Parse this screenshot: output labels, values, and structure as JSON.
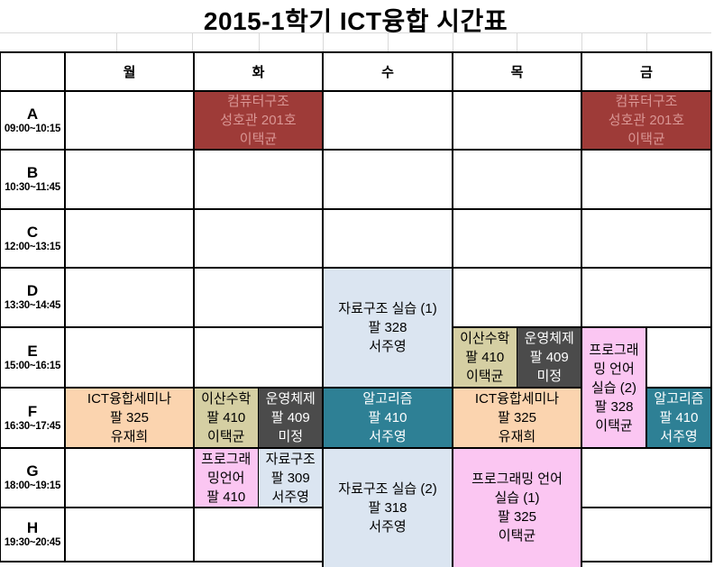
{
  "title": "2015-1학기 ICT융합 시간표",
  "days": [
    "월",
    "화",
    "수",
    "목",
    "금"
  ],
  "periods": [
    {
      "letter": "A",
      "time": "09:00~10:15"
    },
    {
      "letter": "B",
      "time": "10:30~11:45"
    },
    {
      "letter": "C",
      "time": "12:00~13:15"
    },
    {
      "letter": "D",
      "time": "13:30~14:45"
    },
    {
      "letter": "E",
      "time": "15:00~16:15"
    },
    {
      "letter": "F",
      "time": "16:30~17:45"
    },
    {
      "letter": "G",
      "time": "18:00~19:15"
    },
    {
      "letter": "H",
      "time": "19:30~20:45"
    }
  ],
  "colors": {
    "dark_red": "#9E3B38",
    "dark_red_text": "#D99694",
    "light_blue": "#DBE5F1",
    "tan": "#D5CFA3",
    "dark_gray": "#4B4B4B",
    "pink": "#FBC6F2",
    "teal": "#2E8095",
    "peach": "#FBD4AF",
    "white": "#FFFFFF",
    "black": "#000000",
    "border": "#000000",
    "faint_gridline": "#D9D9D9"
  },
  "classes": [
    {
      "id": "computer-architecture-tue-a",
      "day": 1,
      "row_start": 0,
      "row_end": 0,
      "half": "full",
      "bg": "dark_red",
      "fg": "dark_red_text",
      "lines": [
        "컴퓨터구조",
        "성호관 201호",
        "이택균"
      ]
    },
    {
      "id": "computer-architecture-fri-a",
      "day": 4,
      "row_start": 0,
      "row_end": 0,
      "half": "full",
      "bg": "dark_red",
      "fg": "dark_red_text",
      "lines": [
        "컴퓨터구조",
        "성호관 201호",
        "이택균"
      ]
    },
    {
      "id": "data-structures-lab1-wed-de",
      "day": 2,
      "row_start": 3,
      "row_end": 4,
      "half": "full",
      "bg": "light_blue",
      "fg": "black",
      "lines": [
        "자료구조 실습 (1)",
        "팔 328",
        "서주영"
      ]
    },
    {
      "id": "discrete-math-thu-e",
      "day": 3,
      "row_start": 4,
      "row_end": 4,
      "half": "left",
      "bg": "tan",
      "fg": "black",
      "lines": [
        "이산수학",
        "팔 410",
        "이택균"
      ]
    },
    {
      "id": "operating-systems-thu-e",
      "day": 3,
      "row_start": 4,
      "row_end": 4,
      "half": "right",
      "bg": "dark_gray",
      "fg": "white",
      "lines": [
        "운영체제",
        "팔 409",
        "미정"
      ]
    },
    {
      "id": "programming-language-lab2-fri-ef",
      "day": 4,
      "row_start": 4,
      "row_end": 5,
      "half": "left",
      "bg": "pink",
      "fg": "black",
      "lines": [
        "프로그래",
        "밍 언어",
        "실습 (2)",
        "팔 328",
        "이택균"
      ]
    },
    {
      "id": "algorithms-fri-f",
      "day": 4,
      "row_start": 5,
      "row_end": 5,
      "half": "right",
      "bg": "teal",
      "fg": "white",
      "lines": [
        "알고리즘",
        "팔 410",
        "서주영"
      ]
    },
    {
      "id": "ict-convergence-seminar-mon-f",
      "day": 0,
      "row_start": 5,
      "row_end": 5,
      "half": "full",
      "bg": "peach",
      "fg": "black",
      "lines": [
        "ICT융합세미나",
        "팔 325",
        "유재희"
      ]
    },
    {
      "id": "discrete-math-tue-f",
      "day": 1,
      "row_start": 5,
      "row_end": 5,
      "half": "left",
      "bg": "tan",
      "fg": "black",
      "lines": [
        "이산수학",
        "팔 410",
        "이택균"
      ]
    },
    {
      "id": "operating-systems-tue-f",
      "day": 1,
      "row_start": 5,
      "row_end": 5,
      "half": "right",
      "bg": "dark_gray",
      "fg": "white",
      "lines": [
        "운영체제",
        "팔 409",
        "미정"
      ]
    },
    {
      "id": "algorithms-wed-f",
      "day": 2,
      "row_start": 5,
      "row_end": 5,
      "half": "full",
      "bg": "teal",
      "fg": "white",
      "lines": [
        "알고리즘",
        "팔 410",
        "서주영"
      ]
    },
    {
      "id": "ict-convergence-seminar-thu-f",
      "day": 3,
      "row_start": 5,
      "row_end": 5,
      "half": "full",
      "bg": "peach",
      "fg": "black",
      "lines": [
        "ICT융합세미나",
        "팔 325",
        "유재희"
      ]
    },
    {
      "id": "programming-language-tue-g",
      "day": 1,
      "row_start": 6,
      "row_end": 6,
      "half": "left",
      "bg": "pink",
      "fg": "black",
      "lines": [
        "프로그래",
        "밍언어",
        "팔 410"
      ]
    },
    {
      "id": "data-structures-tue-g",
      "day": 1,
      "row_start": 6,
      "row_end": 6,
      "half": "right",
      "bg": "light_blue",
      "fg": "black",
      "lines": [
        "자료구조",
        "팔 309",
        "서주영"
      ]
    },
    {
      "id": "data-structures-lab2-wed-gh",
      "day": 2,
      "row_start": 6,
      "row_end": 7,
      "half": "full",
      "bg": "light_blue",
      "fg": "black",
      "extend_bottom": true,
      "lines": [
        "자료구조 실습 (2)",
        "팔 318",
        "서주영"
      ]
    },
    {
      "id": "programming-language-lab1-thu-gh",
      "day": 3,
      "row_start": 6,
      "row_end": 7,
      "half": "full",
      "bg": "pink",
      "fg": "black",
      "extend_bottom": true,
      "lines": [
        "프로그래밍 언어",
        "실습 (1)",
        "팔 325",
        "이택균"
      ]
    }
  ]
}
